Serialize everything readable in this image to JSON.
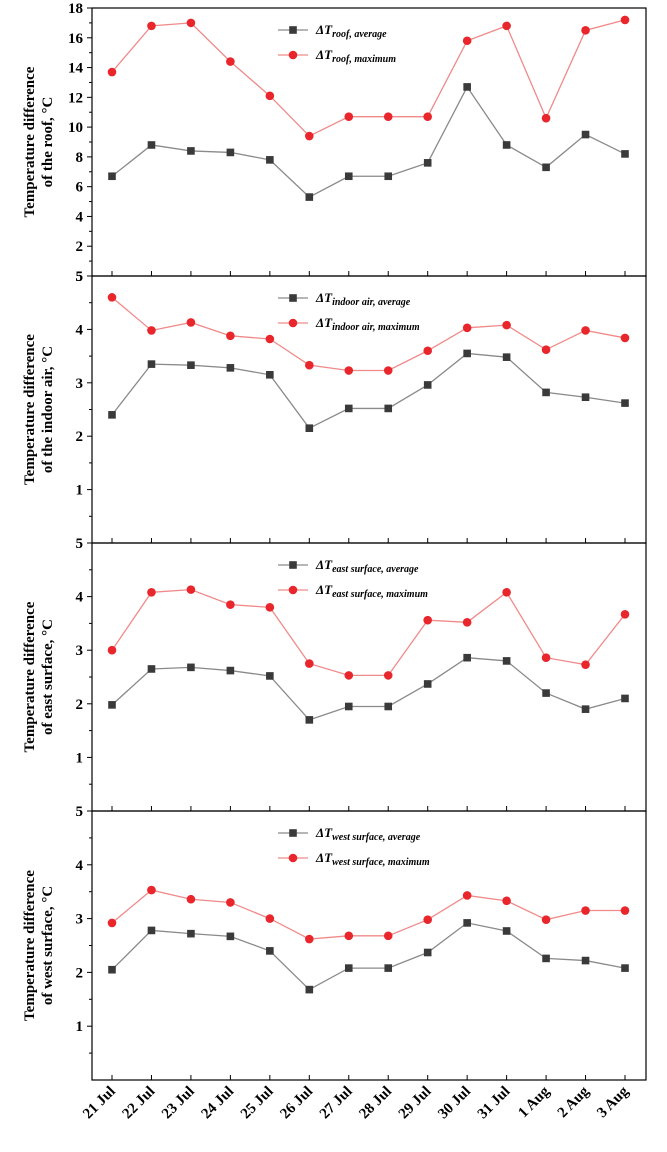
{
  "colors": {
    "average": "#3a3a3a",
    "maximum": "#e8262b",
    "avg_line": "#8a8a8a",
    "max_line": "#f08a8a"
  },
  "chart_data": [
    {
      "type": "line",
      "ylabel_lines": [
        "Temperature difference",
        "of the roof, °C"
      ],
      "ylim": [
        0,
        18
      ],
      "yticks": [
        2,
        4,
        6,
        8,
        10,
        12,
        14,
        16,
        18
      ],
      "ytick_labels": [
        "2",
        "4",
        "6",
        "8",
        "10",
        "12",
        "14",
        "16",
        "18"
      ],
      "bottom_label": "5",
      "categories": [
        "21 Jul",
        "22 Jul",
        "23 Jul",
        "24 Jul",
        "25 Jul",
        "26 Jul",
        "27 Jul",
        "28 Jul",
        "29 Jul",
        "30 Jul",
        "31 Jul",
        "1 Aug",
        "2 Aug",
        "3 Aug"
      ],
      "series": [
        {
          "name": "ΔTroof, average",
          "sym": "ΔT",
          "sub": "roof, average",
          "marker": "square",
          "values": [
            6.7,
            8.8,
            8.4,
            8.3,
            7.8,
            5.3,
            6.7,
            6.7,
            7.6,
            12.7,
            8.8,
            7.3,
            9.5,
            8.2
          ]
        },
        {
          "name": "ΔTroof, maximum",
          "sym": "ΔT",
          "sub": "roof, maximum",
          "marker": "circle",
          "values": [
            13.7,
            16.8,
            17.0,
            14.4,
            12.1,
            9.4,
            10.7,
            10.7,
            10.7,
            15.8,
            16.8,
            10.6,
            16.5,
            17.2
          ]
        }
      ]
    },
    {
      "type": "line",
      "ylabel_lines": [
        "Temperature difference",
        "of the indoor air, °C"
      ],
      "ylim": [
        0,
        5
      ],
      "yticks": [
        1,
        2,
        3,
        4,
        5
      ],
      "ytick_labels": [
        "1",
        "2",
        "3",
        "4",
        "5"
      ],
      "categories": [
        "21 Jul",
        "22 Jul",
        "23 Jul",
        "24 Jul",
        "25 Jul",
        "26 Jul",
        "27 Jul",
        "28 Jul",
        "29 Jul",
        "30 Jul",
        "31 Jul",
        "1 Aug",
        "2 Aug",
        "3 Aug"
      ],
      "series": [
        {
          "name": "ΔTindoor air, average",
          "sym": "ΔT",
          "sub": "indoor air, average",
          "marker": "square",
          "values": [
            2.4,
            3.35,
            3.33,
            3.28,
            3.15,
            2.15,
            2.52,
            2.52,
            2.96,
            3.55,
            3.48,
            2.82,
            2.73,
            2.62
          ]
        },
        {
          "name": "ΔTindoor air, maximum",
          "sym": "ΔT",
          "sub": "indoor air, maximum",
          "marker": "circle",
          "values": [
            4.6,
            3.98,
            4.13,
            3.88,
            3.82,
            3.33,
            3.23,
            3.23,
            3.6,
            4.03,
            4.08,
            3.62,
            3.98,
            3.84
          ]
        }
      ]
    },
    {
      "type": "line",
      "ylabel_lines": [
        "Temperature difference",
        "of east surface, °C"
      ],
      "ylim": [
        0,
        5
      ],
      "yticks": [
        1,
        2,
        3,
        4,
        5
      ],
      "ytick_labels": [
        "1",
        "2",
        "3",
        "4",
        "5"
      ],
      "categories": [
        "21 Jul",
        "22 Jul",
        "23 Jul",
        "24 Jul",
        "25 Jul",
        "26 Jul",
        "27 Jul",
        "28 Jul",
        "29 Jul",
        "30 Jul",
        "31 Jul",
        "1 Aug",
        "2 Aug",
        "3 Aug"
      ],
      "series": [
        {
          "name": "ΔTeast surface, average",
          "sym": "ΔT",
          "sub": "east  surface, average",
          "marker": "square",
          "values": [
            1.98,
            2.65,
            2.68,
            2.62,
            2.52,
            1.7,
            1.95,
            1.95,
            2.37,
            2.86,
            2.8,
            2.2,
            1.9,
            2.1
          ]
        },
        {
          "name": "ΔTeast surface, maximum",
          "sym": "ΔT",
          "sub": "east  surface, maximum",
          "marker": "circle",
          "values": [
            3.0,
            4.08,
            4.13,
            3.85,
            3.8,
            2.75,
            2.53,
            2.53,
            3.56,
            3.52,
            4.08,
            2.86,
            2.73,
            3.67
          ]
        }
      ]
    },
    {
      "type": "line",
      "ylabel_lines": [
        "Temperature difference",
        "of west surface, °C"
      ],
      "ylim": [
        0,
        5
      ],
      "yticks": [
        1,
        2,
        3,
        4,
        5
      ],
      "ytick_labels": [
        "1",
        "2",
        "3",
        "4",
        "5"
      ],
      "categories": [
        "21 Jul",
        "22 Jul",
        "23 Jul",
        "24 Jul",
        "25 Jul",
        "26 Jul",
        "27 Jul",
        "28 Jul",
        "29 Jul",
        "30 Jul",
        "31 Jul",
        "1 Aug",
        "2 Aug",
        "3 Aug"
      ],
      "series": [
        {
          "name": "ΔTwest surface, average",
          "sym": "ΔT",
          "sub": "west surface, average",
          "marker": "square",
          "values": [
            2.05,
            2.78,
            2.72,
            2.67,
            2.4,
            1.68,
            2.08,
            2.08,
            2.37,
            2.92,
            2.77,
            2.26,
            2.22,
            2.08
          ]
        },
        {
          "name": "ΔTwest surface, maximum",
          "sym": "ΔT",
          "sub": "west surface, maximum",
          "marker": "circle",
          "values": [
            2.92,
            3.53,
            3.36,
            3.3,
            3.0,
            2.62,
            2.68,
            2.68,
            2.98,
            3.43,
            3.33,
            2.98,
            3.15,
            3.15
          ]
        }
      ]
    }
  ]
}
